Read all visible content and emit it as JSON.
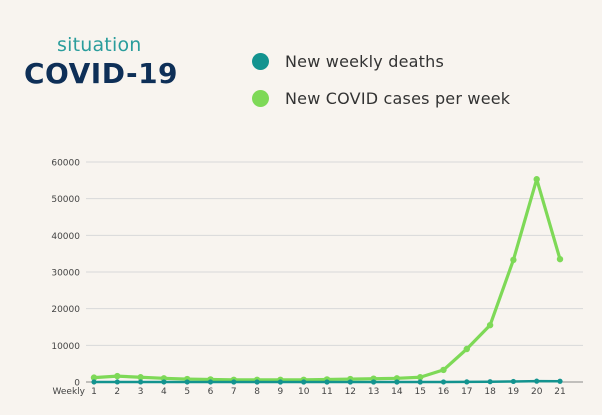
{
  "header": {
    "subtitle": "situation",
    "title": "COVID-19"
  },
  "legend": [
    {
      "label": "New weekly deaths",
      "color": "#13938f"
    },
    {
      "label": "New COVID cases per week",
      "color": "#7ed957"
    }
  ],
  "chart_data": {
    "type": "line",
    "x_axis_label": "Weekly",
    "x": [
      1,
      2,
      3,
      4,
      5,
      6,
      7,
      8,
      9,
      10,
      11,
      12,
      13,
      14,
      15,
      16,
      17,
      18,
      19,
      20,
      21
    ],
    "y_ticks": [
      0,
      10000,
      20000,
      30000,
      40000,
      50000,
      60000
    ],
    "ylim": [
      0,
      60000
    ],
    "grid": true,
    "legend_placement": "top",
    "series": [
      {
        "name": "New weekly deaths",
        "color": "#13938f",
        "values": [
          10,
          15,
          12,
          10,
          8,
          8,
          6,
          6,
          6,
          5,
          5,
          5,
          5,
          5,
          6,
          10,
          30,
          80,
          150,
          230,
          200
        ]
      },
      {
        "name": "New COVID cases per week",
        "color": "#7ed957",
        "values": [
          1200,
          1600,
          1300,
          1000,
          800,
          700,
          600,
          600,
          600,
          600,
          700,
          800,
          900,
          1000,
          1300,
          3300,
          9000,
          15500,
          33300,
          55300,
          33500
        ]
      }
    ]
  }
}
